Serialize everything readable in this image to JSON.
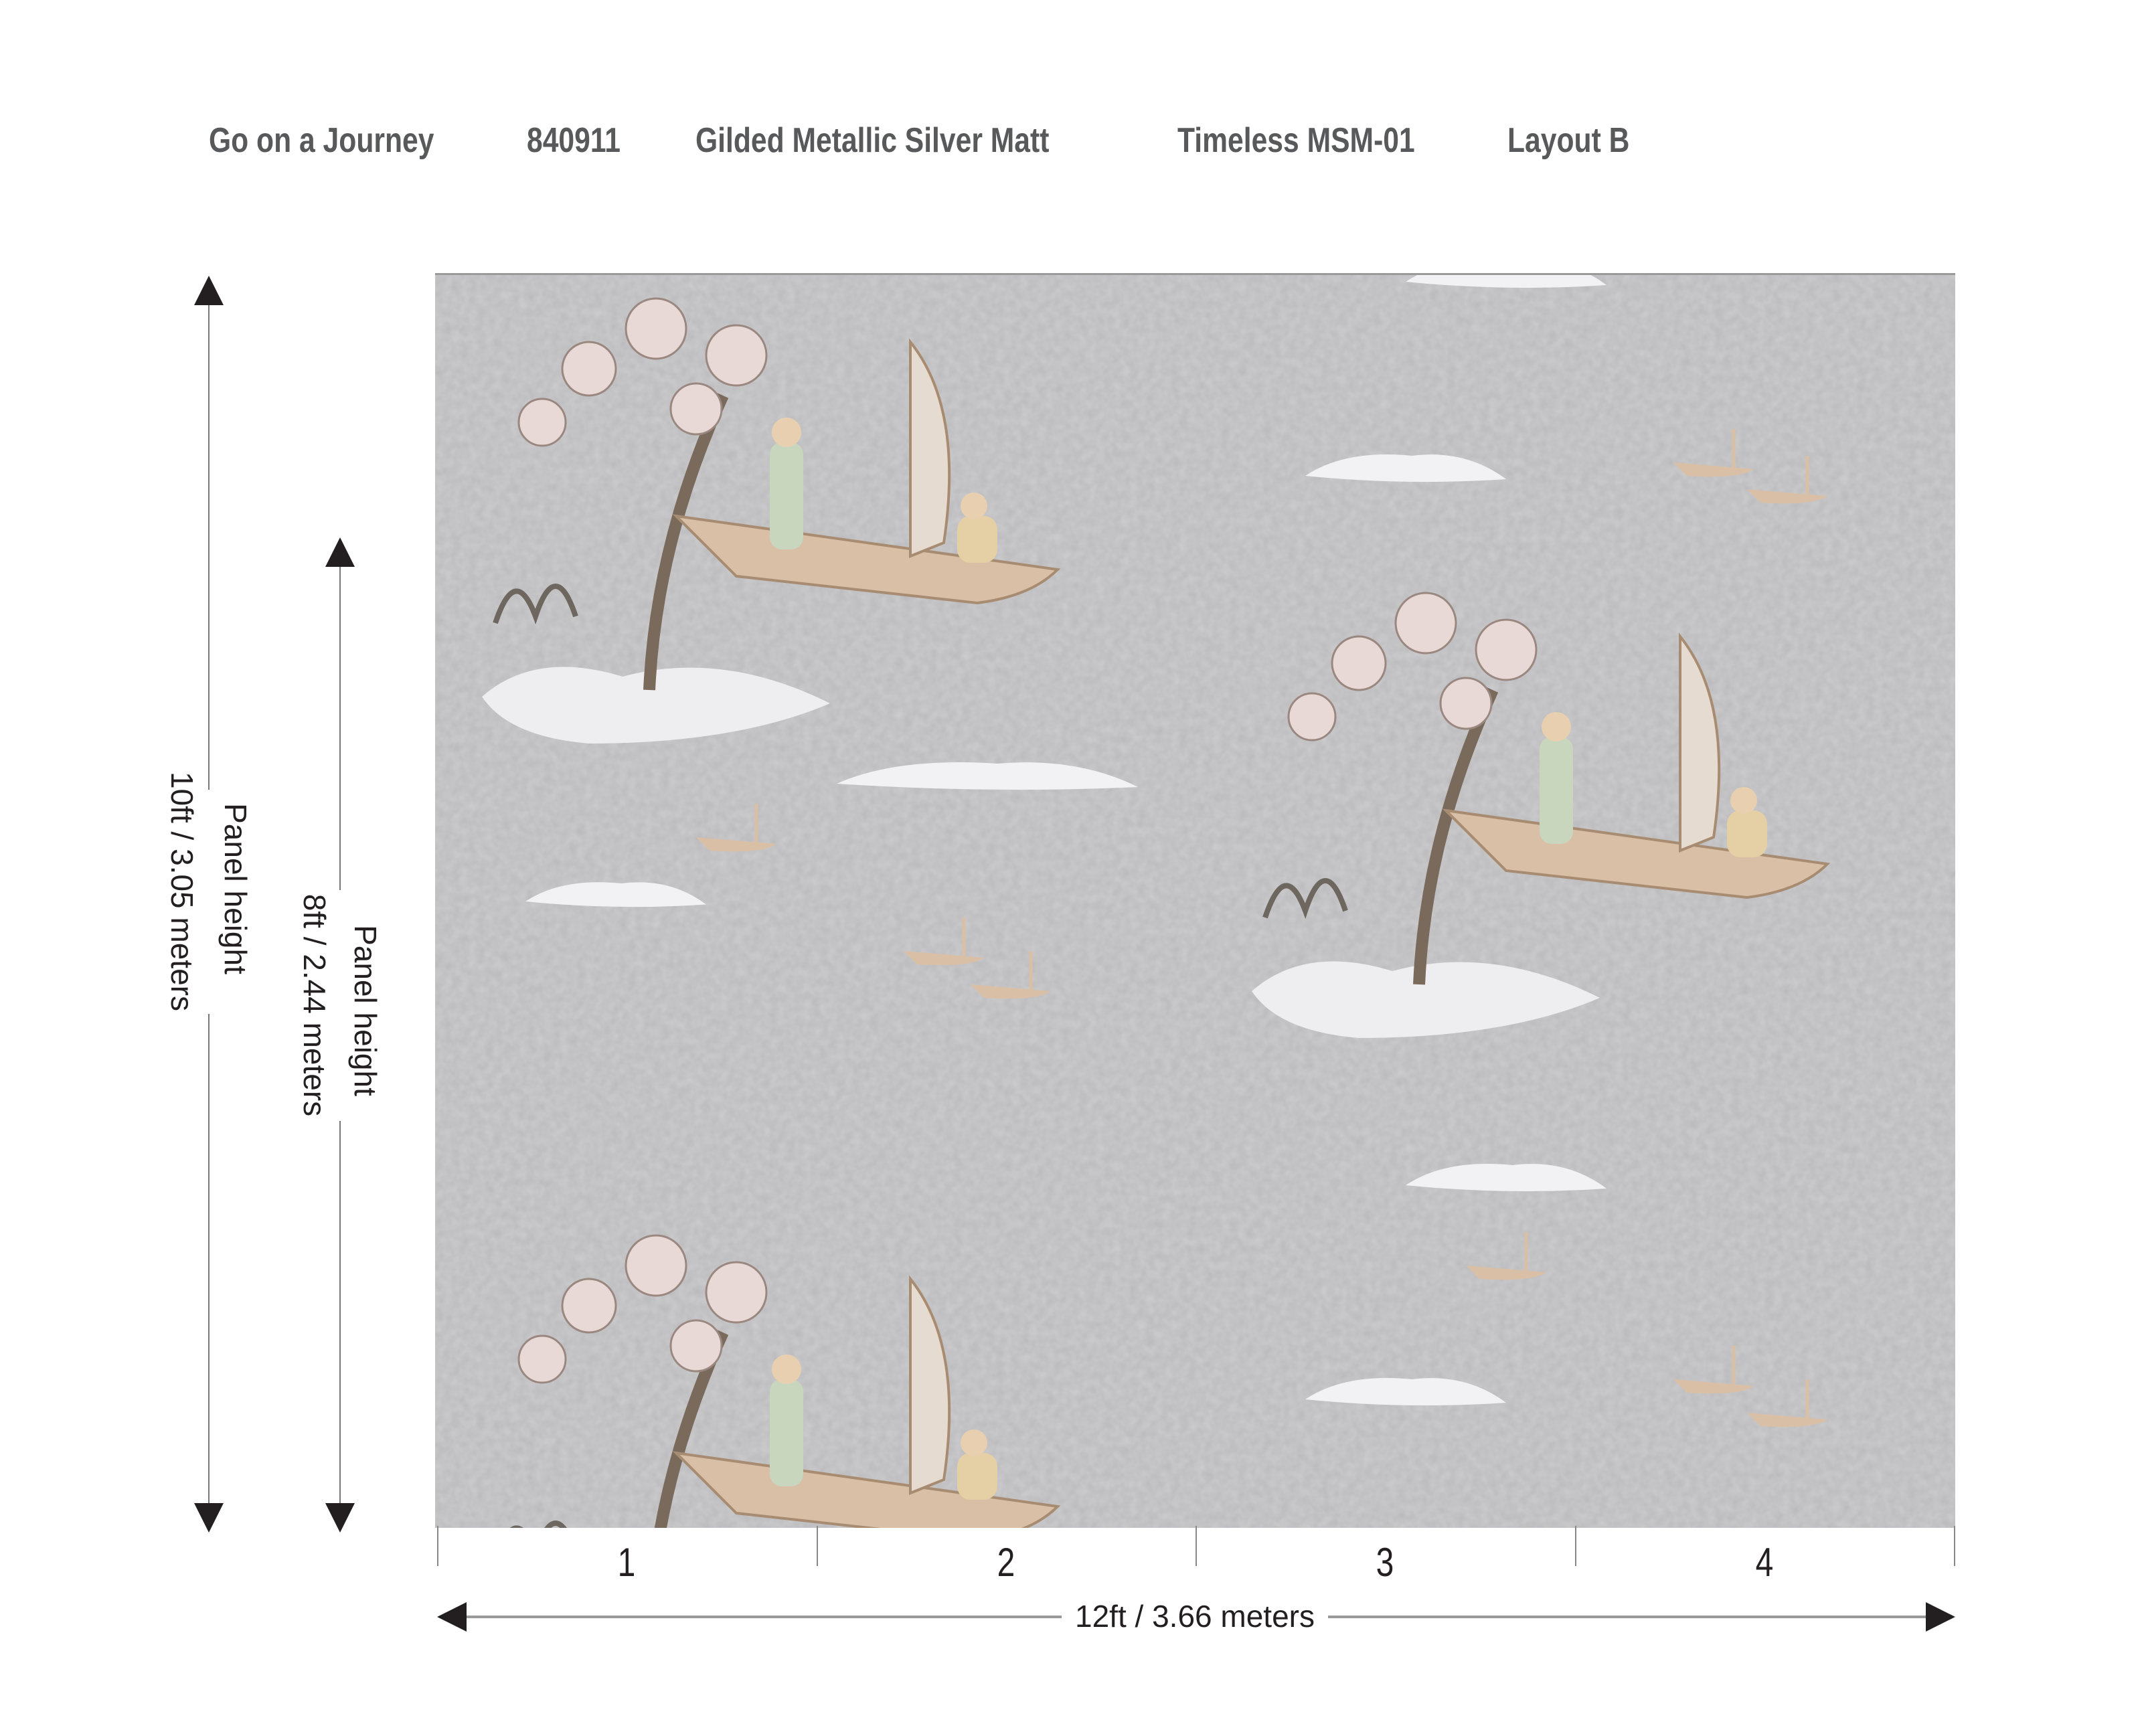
{
  "header": {
    "items": [
      "Go on a Journey",
      "840911",
      "Gilded Metallic Silver Matt",
      "Timeless MSM-01",
      "Layout B"
    ]
  },
  "dimensions": {
    "full_height": {
      "label": "Panel height",
      "value": "10ft / 3.05 meters"
    },
    "panel_height": {
      "label": "Panel height",
      "value": "8ft / 2.44 meters"
    },
    "width": {
      "value": "12ft  / 3.66 meters"
    }
  },
  "panels": [
    "1",
    "2",
    "3",
    "4"
  ],
  "colors": {
    "background": "#b9b9bb",
    "text": "#58595b",
    "arrow": "#231f20",
    "island": "#f2f2f4",
    "boat": "#d9bfa6"
  },
  "icons": [
    "arrow-up-icon",
    "arrow-down-icon",
    "arrow-left-icon",
    "arrow-right-icon"
  ]
}
